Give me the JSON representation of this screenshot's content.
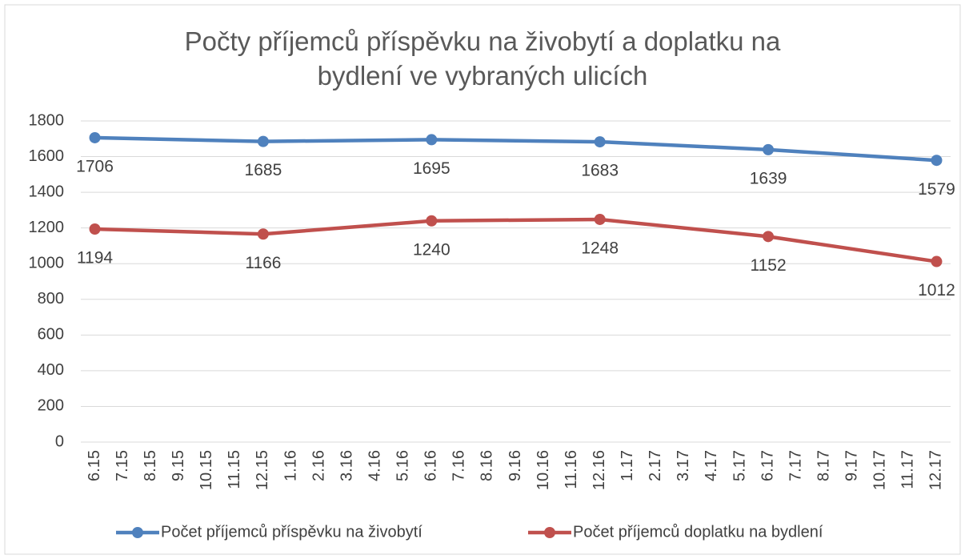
{
  "chart_data": {
    "type": "line",
    "title": "Počty příjemců příspěvku na živobytí a doplatku na bydlení ve vybraných ulicích",
    "categories": [
      "6.15",
      "7.15",
      "8.15",
      "9.15",
      "10.15",
      "11.15",
      "12.15",
      "1.16",
      "2.16",
      "3.16",
      "4.16",
      "5.16",
      "6.16",
      "7.16",
      "8.16",
      "9.16",
      "10.16",
      "11.16",
      "12.16",
      "1.17",
      "2.17",
      "3.17",
      "4.17",
      "5.17",
      "6.17",
      "7.17",
      "8.17",
      "9.17",
      "10.17",
      "11.17",
      "12.17"
    ],
    "series": [
      {
        "name": "Počet příjemců příspěvku na živobytí",
        "color": "#4f81bd",
        "values": [
          1706,
          null,
          null,
          null,
          null,
          null,
          1685,
          null,
          null,
          null,
          null,
          null,
          1695,
          null,
          null,
          null,
          null,
          null,
          1683,
          null,
          null,
          null,
          null,
          null,
          1639,
          null,
          null,
          null,
          null,
          null,
          1579
        ]
      },
      {
        "name": "Počet příjemců doplatku na bydlení",
        "color": "#c0504d",
        "values": [
          1194,
          null,
          null,
          null,
          null,
          null,
          1166,
          null,
          null,
          null,
          null,
          null,
          1240,
          null,
          null,
          null,
          null,
          null,
          1248,
          null,
          null,
          null,
          null,
          null,
          1152,
          null,
          null,
          null,
          null,
          null,
          1012
        ]
      }
    ],
    "span_gaps": true,
    "ylim": [
      0,
      1800
    ],
    "yticks": [
      0,
      200,
      400,
      600,
      800,
      1000,
      1200,
      1400,
      1600,
      1800
    ],
    "grid": true,
    "legend": "bottom"
  }
}
